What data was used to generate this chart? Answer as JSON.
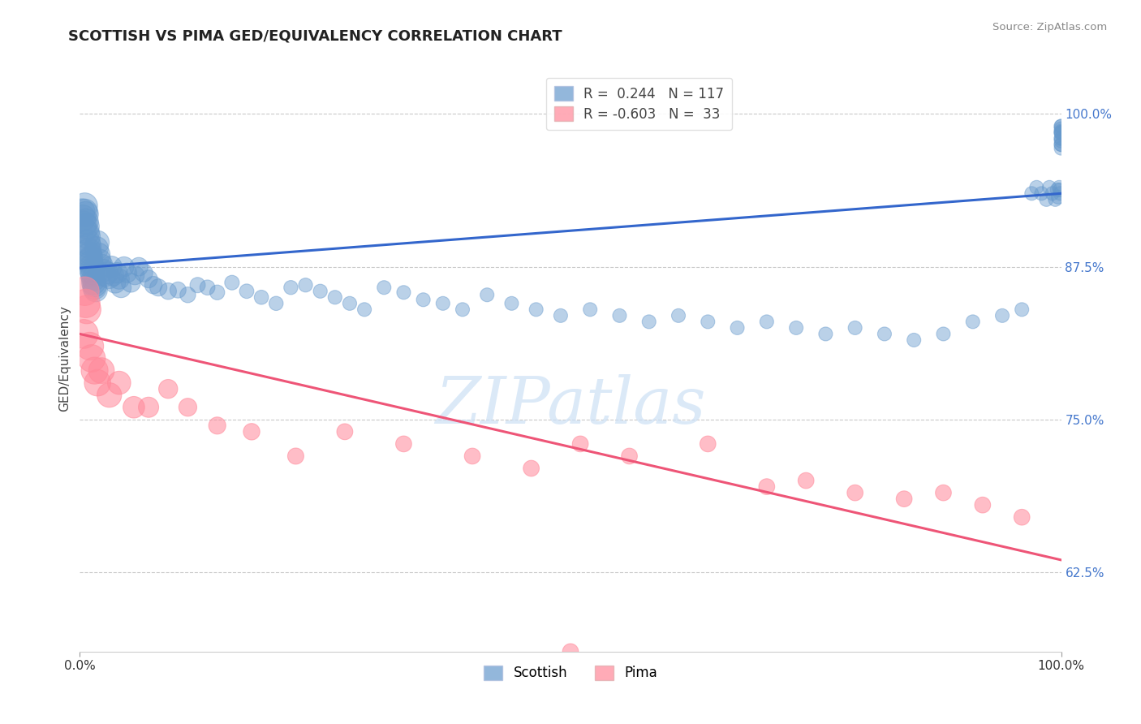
{
  "title": "SCOTTISH VS PIMA GED/EQUIVALENCY CORRELATION CHART",
  "source": "Source: ZipAtlas.com",
  "ylabel": "GED/Equivalency",
  "xlim": [
    0.0,
    1.0
  ],
  "ylim": [
    0.56,
    1.04
  ],
  "yticks": [
    0.625,
    0.75,
    0.875,
    1.0
  ],
  "ytick_labels": [
    "62.5%",
    "75.0%",
    "87.5%",
    "100.0%"
  ],
  "scottish_R": 0.244,
  "scottish_N": 117,
  "pima_R": -0.603,
  "pima_N": 33,
  "scottish_color": "#6699CC",
  "pima_color": "#FF8899",
  "blue_line_color": "#3366CC",
  "pink_line_color": "#EE5577",
  "background_color": "#FFFFFF",
  "watermark": "ZIPatlas",
  "blue_line_x0": 0.0,
  "blue_line_y0": 0.874,
  "blue_line_x1": 1.0,
  "blue_line_y1": 0.935,
  "pink_line_x0": 0.0,
  "pink_line_x1": 1.0,
  "pink_line_y0": 0.82,
  "pink_line_y1": 0.635,
  "scottish_x": [
    0.002,
    0.003,
    0.004,
    0.004,
    0.005,
    0.005,
    0.006,
    0.006,
    0.007,
    0.007,
    0.008,
    0.008,
    0.009,
    0.009,
    0.01,
    0.01,
    0.011,
    0.011,
    0.012,
    0.012,
    0.013,
    0.013,
    0.014,
    0.014,
    0.015,
    0.015,
    0.016,
    0.017,
    0.018,
    0.019,
    0.02,
    0.022,
    0.024,
    0.026,
    0.028,
    0.03,
    0.032,
    0.034,
    0.036,
    0.038,
    0.04,
    0.042,
    0.045,
    0.048,
    0.052,
    0.056,
    0.06,
    0.065,
    0.07,
    0.075,
    0.08,
    0.09,
    0.1,
    0.11,
    0.12,
    0.13,
    0.14,
    0.155,
    0.17,
    0.185,
    0.2,
    0.215,
    0.23,
    0.245,
    0.26,
    0.275,
    0.29,
    0.31,
    0.33,
    0.35,
    0.37,
    0.39,
    0.415,
    0.44,
    0.465,
    0.49,
    0.52,
    0.55,
    0.58,
    0.61,
    0.64,
    0.67,
    0.7,
    0.73,
    0.76,
    0.79,
    0.82,
    0.85,
    0.88,
    0.91,
    0.94,
    0.96,
    0.97,
    0.975,
    0.98,
    0.985,
    0.988,
    0.991,
    0.994,
    0.996,
    0.997,
    0.998,
    0.999,
    0.999,
    1.0,
    1.0,
    1.0,
    1.0,
    1.0,
    1.0,
    1.0,
    1.0,
    1.0,
    1.0,
    1.0,
    1.0,
    1.0
  ],
  "scottish_y": [
    0.92,
    0.915,
    0.91,
    0.905,
    0.925,
    0.92,
    0.918,
    0.912,
    0.908,
    0.903,
    0.9,
    0.895,
    0.892,
    0.888,
    0.885,
    0.88,
    0.882,
    0.878,
    0.875,
    0.872,
    0.87,
    0.868,
    0.865,
    0.862,
    0.86,
    0.858,
    0.856,
    0.89,
    0.895,
    0.885,
    0.88,
    0.876,
    0.872,
    0.868,
    0.87,
    0.866,
    0.875,
    0.868,
    0.862,
    0.87,
    0.865,
    0.858,
    0.875,
    0.87,
    0.862,
    0.868,
    0.875,
    0.87,
    0.865,
    0.86,
    0.858,
    0.855,
    0.856,
    0.852,
    0.86,
    0.858,
    0.854,
    0.862,
    0.855,
    0.85,
    0.845,
    0.858,
    0.86,
    0.855,
    0.85,
    0.845,
    0.84,
    0.858,
    0.854,
    0.848,
    0.845,
    0.84,
    0.852,
    0.845,
    0.84,
    0.835,
    0.84,
    0.835,
    0.83,
    0.835,
    0.83,
    0.825,
    0.83,
    0.825,
    0.82,
    0.825,
    0.82,
    0.815,
    0.82,
    0.83,
    0.835,
    0.84,
    0.935,
    0.94,
    0.935,
    0.93,
    0.94,
    0.935,
    0.93,
    0.938,
    0.932,
    0.94,
    0.938,
    0.935,
    0.99,
    0.985,
    0.98,
    0.975,
    0.972,
    0.98,
    0.978,
    0.975,
    0.985,
    0.99,
    0.988,
    0.986,
    0.984
  ],
  "pima_x": [
    0.004,
    0.005,
    0.006,
    0.007,
    0.01,
    0.012,
    0.015,
    0.018,
    0.022,
    0.03,
    0.04,
    0.055,
    0.07,
    0.09,
    0.11,
    0.14,
    0.175,
    0.22,
    0.27,
    0.33,
    0.4,
    0.46,
    0.51,
    0.56,
    0.64,
    0.7,
    0.74,
    0.79,
    0.84,
    0.88,
    0.92,
    0.96,
    0.5
  ],
  "pima_y": [
    0.82,
    0.855,
    0.845,
    0.84,
    0.81,
    0.8,
    0.79,
    0.78,
    0.79,
    0.77,
    0.78,
    0.76,
    0.76,
    0.775,
    0.76,
    0.745,
    0.74,
    0.72,
    0.74,
    0.73,
    0.72,
    0.71,
    0.73,
    0.72,
    0.73,
    0.695,
    0.7,
    0.69,
    0.685,
    0.69,
    0.68,
    0.67,
    0.56
  ]
}
